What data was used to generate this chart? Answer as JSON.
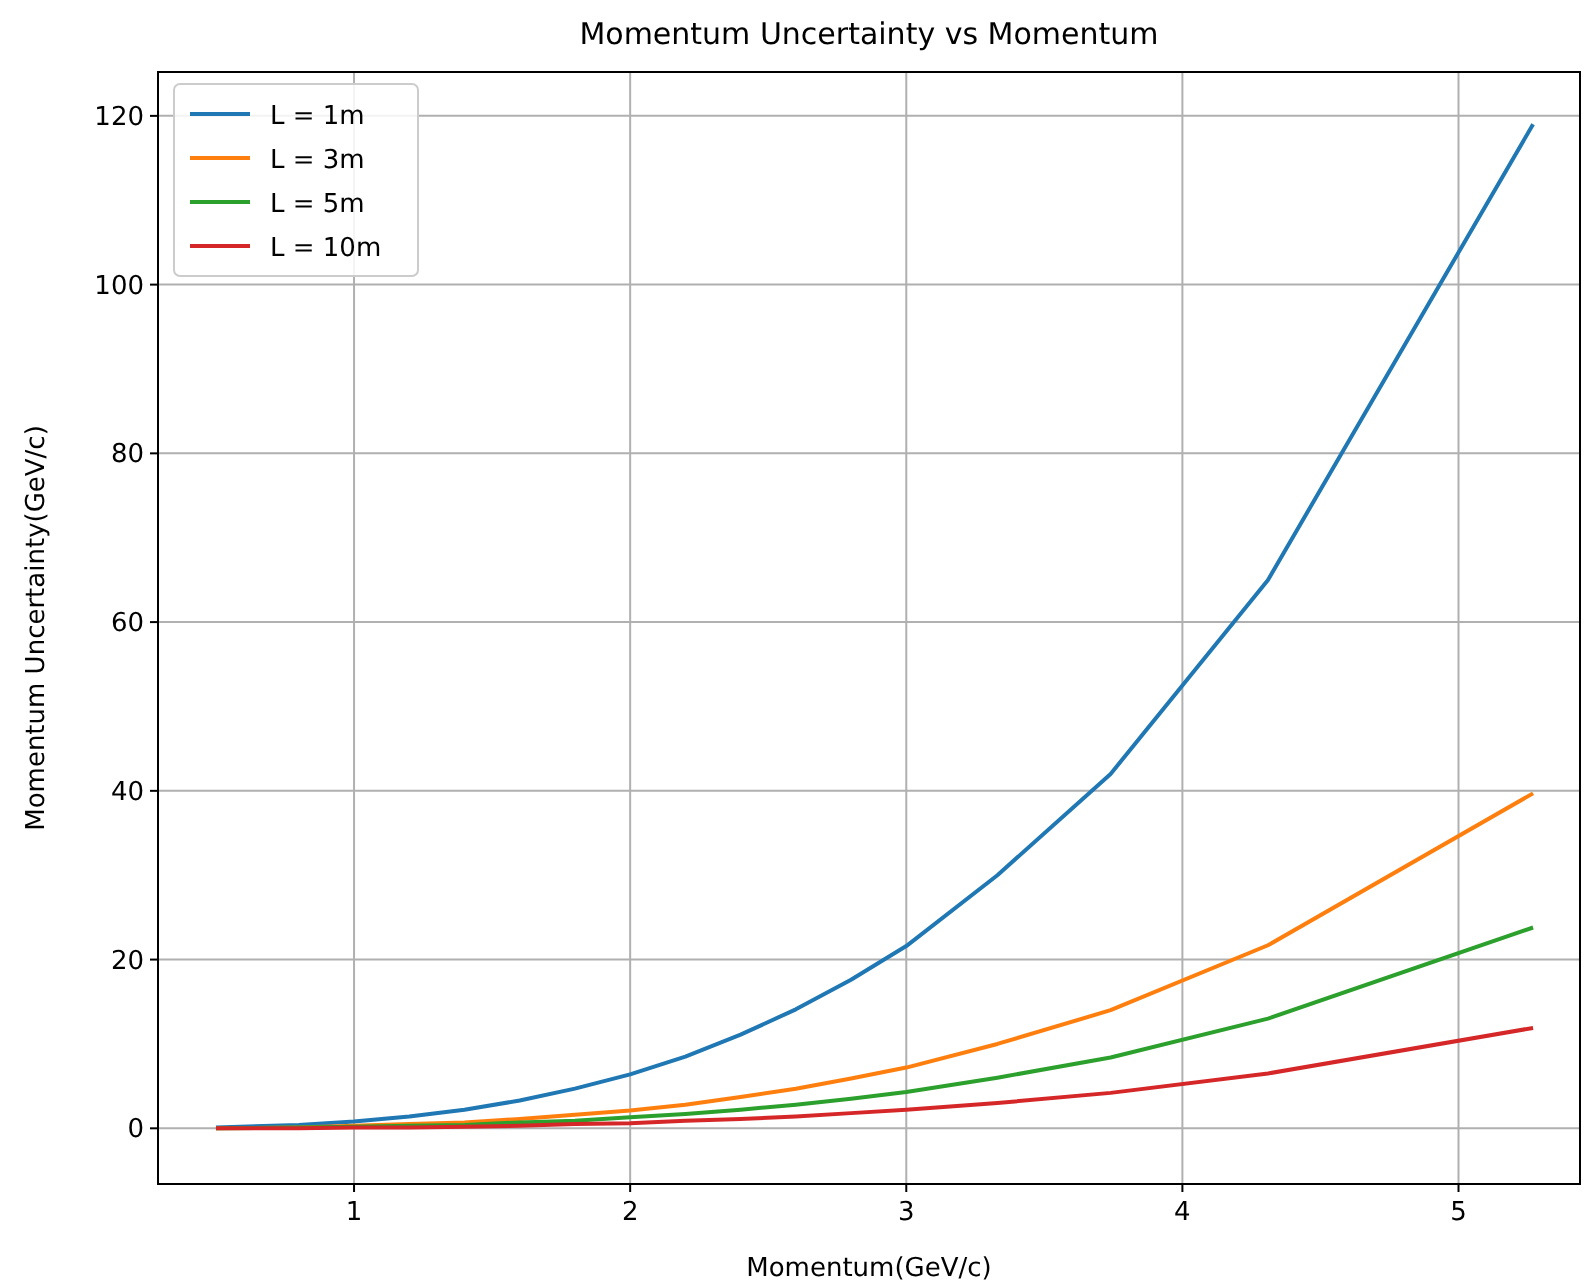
{
  "chart_data": {
    "type": "line",
    "title": "Momentum Uncertainty vs Momentum",
    "xlabel": "Momentum(GeV/c)",
    "ylabel": "Momentum Uncertainty(GeV/c)",
    "x": [
      0.5,
      0.8,
      1.0,
      1.2,
      1.4,
      1.6,
      1.8,
      2.0,
      2.2,
      2.4,
      2.6,
      2.8,
      3.0,
      3.33,
      3.74,
      4.31,
      5.27
    ],
    "series": [
      {
        "name": "L = 1m",
        "color": "#1f77b4",
        "values": [
          0.1,
          0.4,
          0.8,
          1.4,
          2.2,
          3.3,
          4.7,
          6.4,
          8.5,
          11.1,
          14.1,
          17.6,
          21.6,
          30,
          42,
          65,
          119
        ]
      },
      {
        "name": "L = 3m",
        "color": "#ff7f0e",
        "values": [
          0.0,
          0.1,
          0.3,
          0.5,
          0.7,
          1.1,
          1.6,
          2.1,
          2.8,
          3.7,
          4.7,
          5.9,
          7.2,
          10,
          14,
          21.7,
          39.7
        ]
      },
      {
        "name": "L = 5m",
        "color": "#2ca02c",
        "values": [
          0.0,
          0.1,
          0.2,
          0.3,
          0.4,
          0.7,
          0.9,
          1.3,
          1.7,
          2.2,
          2.8,
          3.5,
          4.3,
          6,
          8.4,
          13,
          23.8
        ]
      },
      {
        "name": "L = 10m",
        "color": "#d62728",
        "values": [
          0.0,
          0.0,
          0.1,
          0.1,
          0.2,
          0.3,
          0.5,
          0.6,
          0.9,
          1.1,
          1.4,
          1.8,
          2.2,
          3,
          4.2,
          6.5,
          11.9
        ]
      }
    ],
    "xlim": [
      0.29,
      5.44
    ],
    "xticks": [
      1,
      2,
      3,
      4,
      5
    ],
    "ylim": [
      -6.6,
      125.2
    ],
    "yticks": [
      0,
      20,
      40,
      60,
      80,
      100,
      120
    ],
    "grid": true,
    "legend": "top left",
    "marker": "none",
    "line_style": "solid"
  }
}
